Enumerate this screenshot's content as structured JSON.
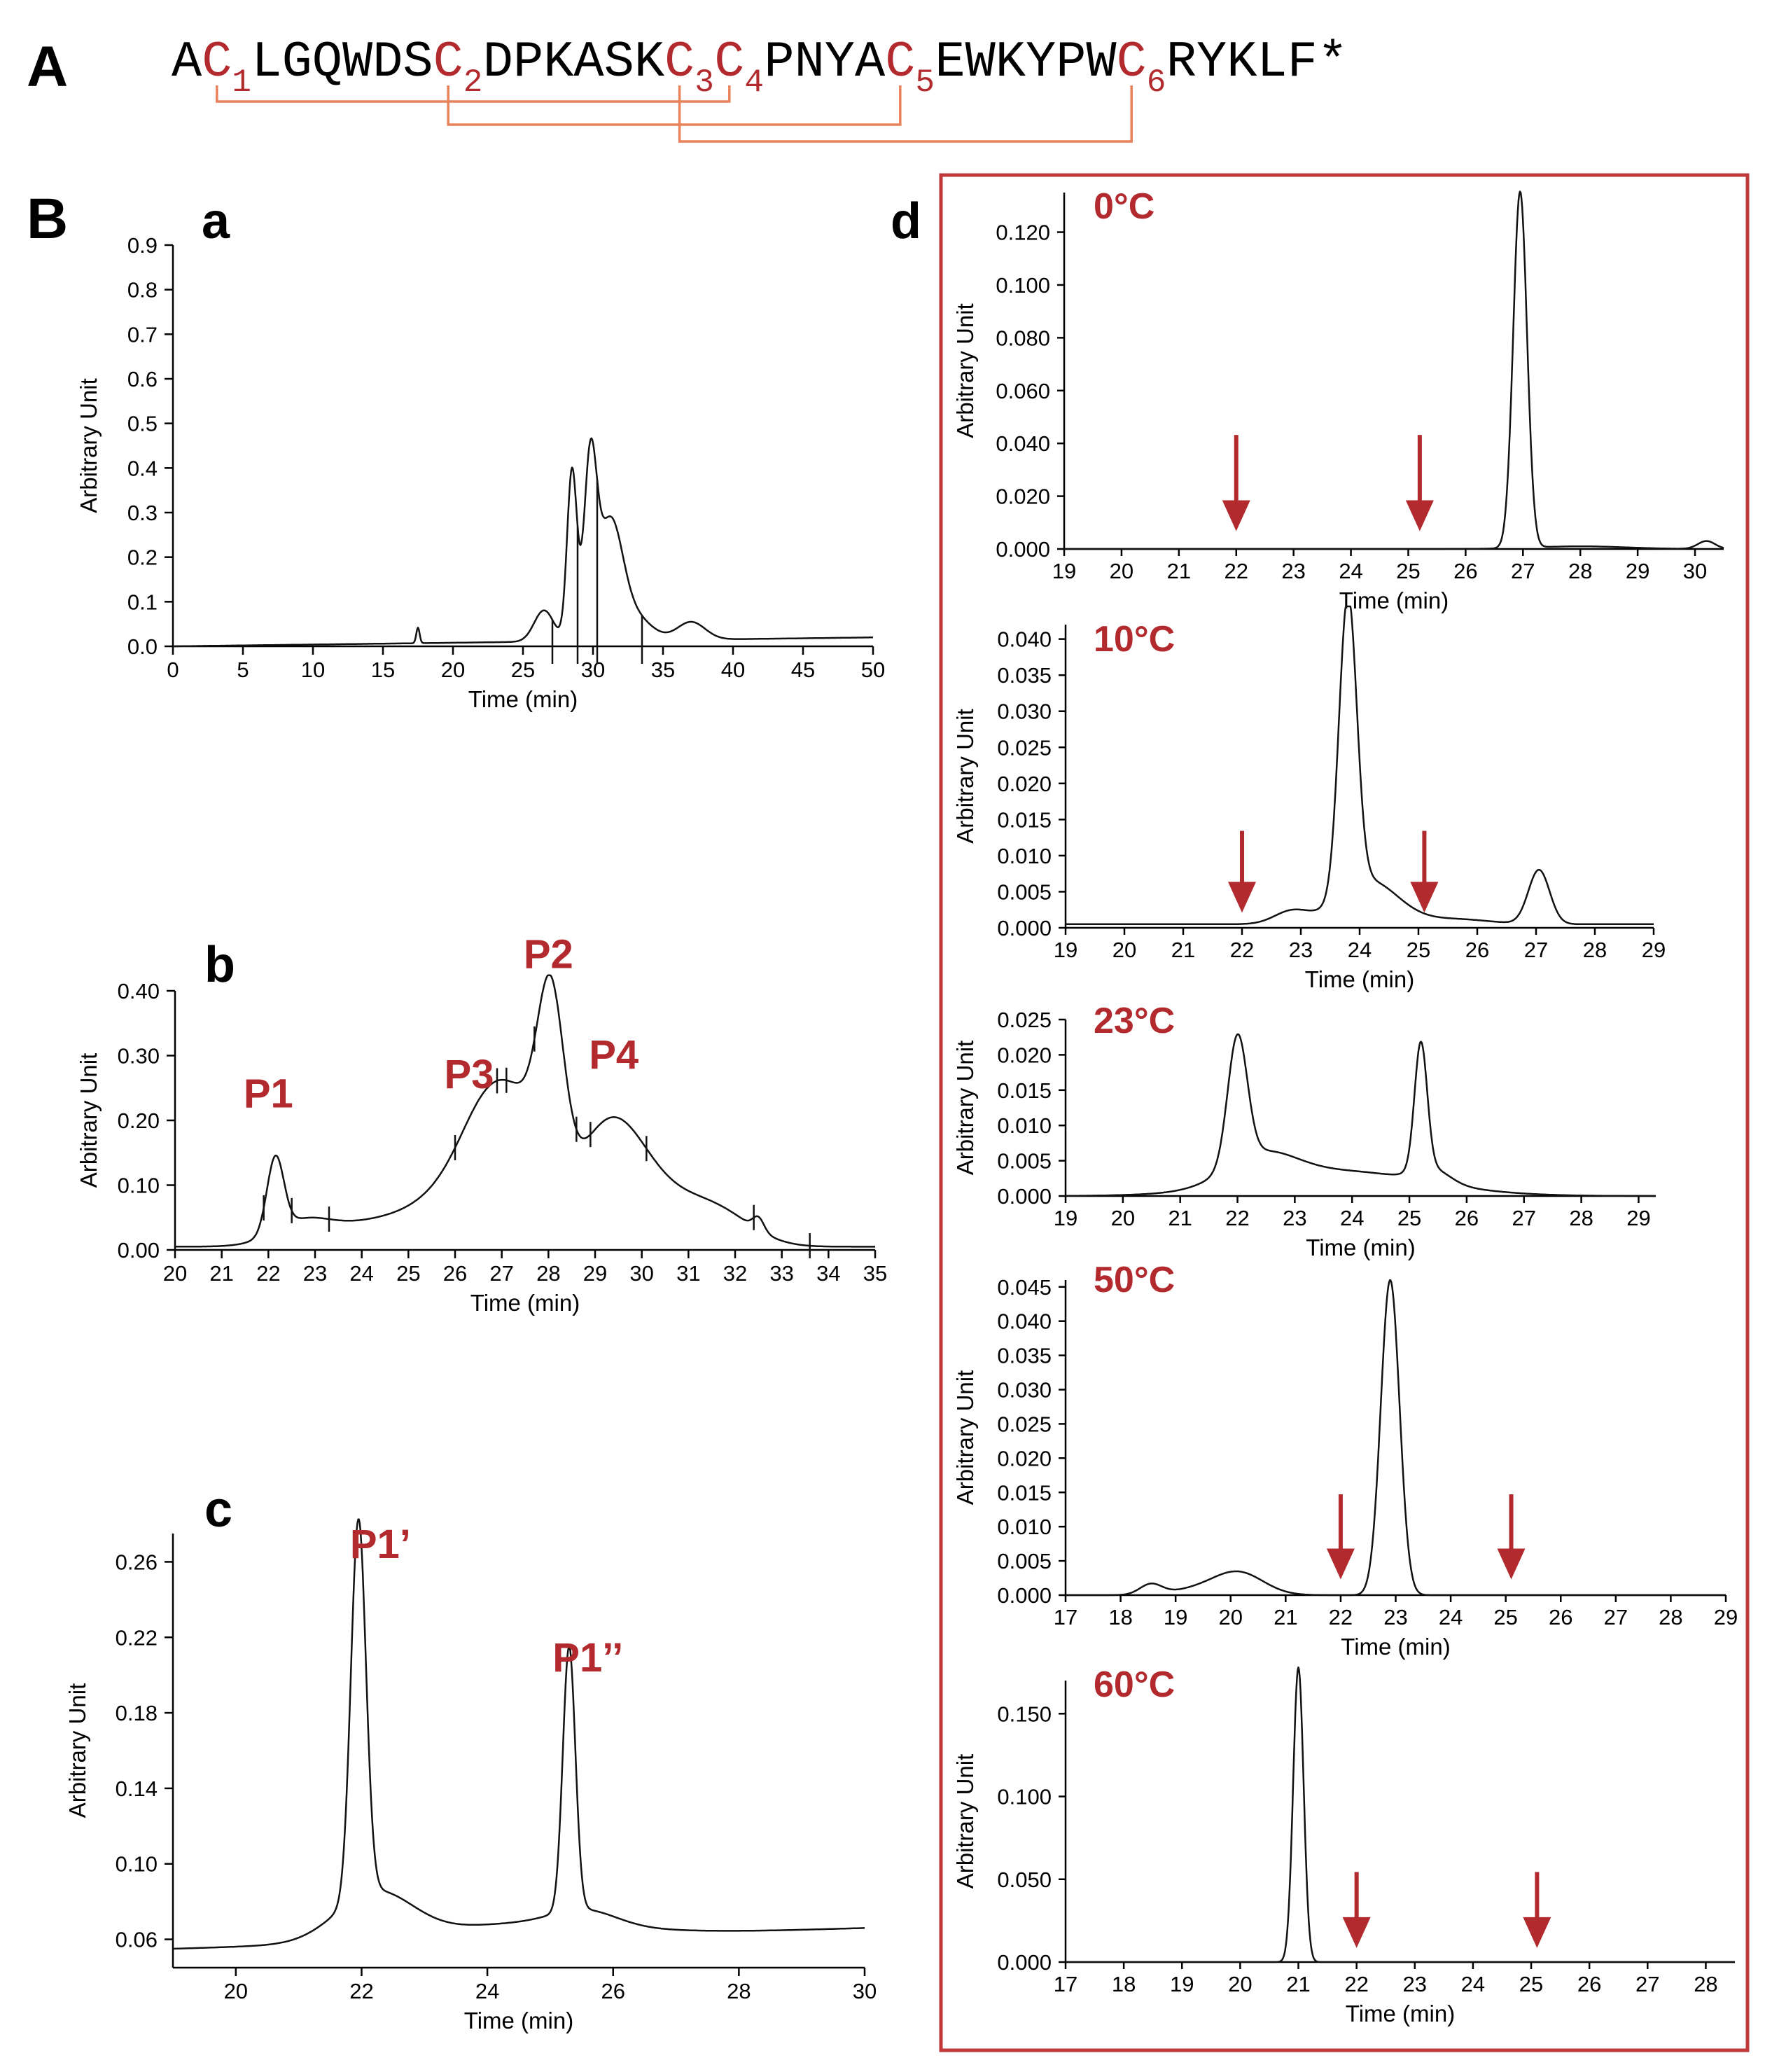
{
  "panel_a": {
    "letter": "A",
    "sequence": [
      {
        "t": "A",
        "c": "k"
      },
      {
        "t": "C",
        "c": "r",
        "sub": "1"
      },
      {
        "t": "LGQWDS",
        "c": "k"
      },
      {
        "t": "C",
        "c": "r",
        "sub": "2"
      },
      {
        "t": "DPKASK",
        "c": "k"
      },
      {
        "t": "C",
        "c": "r",
        "sub": "3"
      },
      {
        "t": "C",
        "c": "r",
        "sub": "4"
      },
      {
        "t": "PNYA",
        "c": "k"
      },
      {
        "t": "C",
        "c": "r",
        "sub": "5"
      },
      {
        "t": "EWKYPW",
        "c": "k"
      },
      {
        "t": "C",
        "c": "r",
        "sub": "6"
      },
      {
        "t": "RYKLF*",
        "c": "k"
      }
    ],
    "disulfide_bonds": [
      [
        "1",
        "4"
      ],
      [
        "2",
        "5"
      ],
      [
        "3",
        "6"
      ]
    ]
  },
  "panel_b": {
    "letter": "B"
  },
  "colors": {
    "accent": "#b22a2e",
    "bond": "#e8825a",
    "trace": "#111111",
    "frame": "#c0393b"
  },
  "chart_data": [
    {
      "id": "a",
      "type": "line",
      "label": "a",
      "xlabel": "Time (min)",
      "ylabel": "Arbitrary Unit",
      "xlim": [
        0,
        50
      ],
      "ylim": [
        0,
        0.9
      ],
      "xticks": [
        0,
        5,
        10,
        15,
        20,
        25,
        30,
        35,
        40,
        45,
        50
      ],
      "xtick_labels": [
        "0",
        "5",
        "10",
        "15",
        "20",
        "25",
        "30",
        "35",
        "40",
        "45",
        "50"
      ],
      "yticks": [
        0.0,
        0.1,
        0.2,
        0.3,
        0.4,
        0.5,
        0.6,
        0.7,
        0.8,
        0.9
      ],
      "ytick_labels": [
        "0.0",
        "0.1",
        "0.2",
        "0.3",
        "0.4",
        "0.5",
        "0.6",
        "0.7",
        "0.8",
        "0.9"
      ],
      "baseline": 0.0,
      "slope": 0.0004,
      "peaks": [
        [
          17.5,
          0.035,
          0.12
        ],
        [
          26.5,
          0.07,
          0.7
        ],
        [
          28.5,
          0.38,
          0.35
        ],
        [
          29.8,
          0.37,
          0.45
        ],
        [
          31.2,
          0.26,
          0.9
        ],
        [
          33.0,
          0.05,
          1.2
        ],
        [
          37.0,
          0.04,
          1.0
        ]
      ],
      "cut_marks": [
        27.1,
        28.9,
        30.3,
        33.5
      ],
      "labels": []
    },
    {
      "id": "b",
      "type": "line",
      "label": "b",
      "xlabel": "Time (min)",
      "ylabel": "Arbitrary Unit",
      "xlim": [
        20,
        35
      ],
      "ylim": [
        0,
        0.4
      ],
      "xticks": [
        20,
        21,
        22,
        23,
        24,
        25,
        26,
        27,
        28,
        29,
        30,
        31,
        32,
        33,
        34,
        35
      ],
      "xtick_labels": [
        "20",
        "21",
        "22",
        "23",
        "24",
        "25",
        "26",
        "27",
        "28",
        "29",
        "30",
        "31",
        "32",
        "33",
        "34",
        "35"
      ],
      "yticks": [
        0.0,
        0.1,
        0.2,
        0.3,
        0.4
      ],
      "ytick_labels": [
        "0.00",
        "0.10",
        "0.20",
        "0.30",
        "0.40"
      ],
      "baseline": 0.005,
      "slope": 0,
      "peaks": [
        [
          22.15,
          0.115,
          0.18
        ],
        [
          22.7,
          0.03,
          0.6
        ],
        [
          24.5,
          0.04,
          1.2
        ],
        [
          26.2,
          0.08,
          0.8
        ],
        [
          26.7,
          0.12,
          0.55
        ],
        [
          27.5,
          0.15,
          0.55
        ],
        [
          28.05,
          0.27,
          0.28
        ],
        [
          29.3,
          0.18,
          0.75
        ],
        [
          30.7,
          0.06,
          0.9
        ],
        [
          31.8,
          0.03,
          0.7
        ],
        [
          32.5,
          0.02,
          0.12
        ]
      ],
      "cut_marks": [
        21.9,
        22.5,
        23.3,
        26.0,
        26.9,
        27.1,
        27.7,
        28.6,
        28.9,
        30.1,
        32.4,
        33.6
      ],
      "labels": [
        {
          "text": "P1",
          "x": 22.0,
          "y": 0.22
        },
        {
          "text": "P3",
          "x": 26.3,
          "y": 0.25
        },
        {
          "text": "P2",
          "x": 28.0,
          "y": 0.435
        },
        {
          "text": "P4",
          "x": 29.4,
          "y": 0.28
        }
      ]
    },
    {
      "id": "c",
      "type": "line",
      "label": "c",
      "xlabel": "Time (min)",
      "ylabel": "Arbitrary Unit",
      "xlim": [
        19,
        30
      ],
      "ylim": [
        0.045,
        0.275
      ],
      "xticks": [
        20,
        22,
        24,
        26,
        28,
        30
      ],
      "xtick_labels": [
        "20",
        "22",
        "24",
        "26",
        "28",
        "30"
      ],
      "yticks": [
        0.06,
        0.1,
        0.14,
        0.18,
        0.22,
        0.26
      ],
      "ytick_labels": [
        "0.06",
        "0.10",
        "0.14",
        "0.18",
        "0.22",
        "0.26"
      ],
      "baseline": 0.055,
      "slope": 0.001,
      "peaks": [
        [
          21.95,
          0.2,
          0.12
        ],
        [
          22.2,
          0.025,
          0.6
        ],
        [
          25.3,
          0.14,
          0.1
        ],
        [
          25.55,
          0.008,
          0.5
        ],
        [
          24.5,
          0.008,
          1.5
        ]
      ],
      "cut_marks": [],
      "labels": [
        {
          "text": "P1’",
          "x": 22.3,
          "y": 0.262
        },
        {
          "text": "P1’’",
          "x": 25.6,
          "y": 0.202
        }
      ]
    },
    {
      "id": "d0",
      "type": "line",
      "label": "d",
      "temp": "0°C",
      "xlabel": "Time (min)",
      "ylabel": "Arbitrary Unit",
      "xlim": [
        19,
        30.5
      ],
      "ylim": [
        0,
        0.135
      ],
      "xticks": [
        19,
        20,
        21,
        22,
        23,
        24,
        25,
        26,
        27,
        28,
        29,
        30
      ],
      "xtick_labels": [
        "19",
        "20",
        "21",
        "22",
        "23",
        "24",
        "25",
        "26",
        "27",
        "28",
        "29",
        "30"
      ],
      "yticks": [
        0.0,
        0.02,
        0.04,
        0.06,
        0.08,
        0.1,
        0.12
      ],
      "ytick_labels": [
        "0.000",
        "0.020",
        "0.040",
        "0.060",
        "0.080",
        "0.100",
        "0.120"
      ],
      "baseline": 0.0,
      "slope": 0,
      "peaks": [
        [
          26.95,
          0.135,
          0.12
        ],
        [
          30.2,
          0.003,
          0.15
        ],
        [
          28.0,
          0.001,
          0.8
        ]
      ],
      "arrows": [
        22.0,
        25.2
      ],
      "cut_marks": [],
      "labels": []
    },
    {
      "id": "d10",
      "type": "line",
      "label": "",
      "temp": "10°C",
      "xlabel": "Time (min)",
      "ylabel": "Arbitrary Unit",
      "xlim": [
        19,
        29
      ],
      "ylim": [
        0,
        0.042
      ],
      "xticks": [
        19,
        20,
        21,
        22,
        23,
        24,
        25,
        26,
        27,
        28,
        29
      ],
      "xtick_labels": [
        "19",
        "20",
        "21",
        "22",
        "23",
        "24",
        "25",
        "26",
        "27",
        "28",
        "29"
      ],
      "yticks": [
        0.0,
        0.005,
        0.01,
        0.015,
        0.02,
        0.025,
        0.03,
        0.035,
        0.04
      ],
      "ytick_labels": [
        "0.000",
        "0.005",
        "0.010",
        "0.015",
        "0.020",
        "0.025",
        "0.030",
        "0.035",
        "0.040"
      ],
      "baseline": 0.0005,
      "slope": 0,
      "peaks": [
        [
          23.8,
          0.041,
          0.15
        ],
        [
          24.15,
          0.006,
          0.5
        ],
        [
          22.85,
          0.0018,
          0.3
        ],
        [
          27.05,
          0.0075,
          0.18
        ],
        [
          25.6,
          0.0007,
          0.6
        ]
      ],
      "arrows": [
        22.0,
        25.1
      ],
      "cut_marks": [],
      "labels": []
    },
    {
      "id": "d23",
      "type": "line",
      "label": "",
      "temp": "23°C",
      "xlabel": "Time (min)",
      "ylabel": "Arbitrary Unit",
      "xlim": [
        19,
        29.3
      ],
      "ylim": [
        0,
        0.025
      ],
      "xticks": [
        19,
        20,
        21,
        22,
        23,
        24,
        25,
        26,
        27,
        28,
        29
      ],
      "xtick_labels": [
        "19",
        "20",
        "21",
        "22",
        "23",
        "24",
        "25",
        "26",
        "27",
        "28",
        "29"
      ],
      "yticks": [
        0.0,
        0.005,
        0.01,
        0.015,
        0.02,
        0.025
      ],
      "ytick_labels": [
        "0.000",
        "0.005",
        "0.010",
        "0.015",
        "0.020",
        "0.025"
      ],
      "baseline": 0.0,
      "slope": 0,
      "peaks": [
        [
          22.0,
          0.018,
          0.17
        ],
        [
          22.4,
          0.004,
          0.6
        ],
        [
          23.8,
          0.0035,
          1.5
        ],
        [
          25.2,
          0.018,
          0.11
        ],
        [
          25.4,
          0.002,
          0.3
        ]
      ],
      "arrows": [],
      "cut_marks": [],
      "labels": []
    },
    {
      "id": "d50",
      "type": "line",
      "label": "",
      "temp": "50°C",
      "xlabel": "Time (min)",
      "ylabel": "Arbitrary Unit",
      "xlim": [
        17,
        29
      ],
      "ylim": [
        0,
        0.046
      ],
      "xticks": [
        17,
        18,
        19,
        20,
        21,
        22,
        23,
        24,
        25,
        26,
        27,
        28,
        29
      ],
      "xtick_labels": [
        "17",
        "18",
        "19",
        "20",
        "21",
        "22",
        "23",
        "24",
        "25",
        "26",
        "27",
        "28",
        "29"
      ],
      "yticks": [
        0.0,
        0.005,
        0.01,
        0.015,
        0.02,
        0.025,
        0.03,
        0.035,
        0.04,
        0.045
      ],
      "ytick_labels": [
        "0.000",
        "0.005",
        "0.010",
        "0.015",
        "0.020",
        "0.025",
        "0.030",
        "0.035",
        "0.040",
        "0.045"
      ],
      "baseline": 0.0,
      "slope": 0,
      "peaks": [
        [
          18.55,
          0.0015,
          0.2
        ],
        [
          20.15,
          0.0032,
          0.45
        ],
        [
          19.4,
          0.0008,
          0.5
        ],
        [
          22.9,
          0.046,
          0.17
        ]
      ],
      "arrows": [
        22.0,
        25.1
      ],
      "cut_marks": [],
      "labels": []
    },
    {
      "id": "d60",
      "type": "line",
      "label": "",
      "temp": "60°C",
      "xlabel": "Time (min)",
      "ylabel": "Arbitrary Unit",
      "xlim": [
        17,
        28.5
      ],
      "ylim": [
        0,
        0.17
      ],
      "xticks": [
        17,
        18,
        19,
        20,
        21,
        22,
        23,
        24,
        25,
        26,
        27,
        28
      ],
      "xtick_labels": [
        "17",
        "18",
        "19",
        "20",
        "21",
        "22",
        "23",
        "24",
        "25",
        "26",
        "27",
        "28"
      ],
      "yticks": [
        0.0,
        0.05,
        0.1,
        0.15
      ],
      "ytick_labels": [
        "0.000",
        "0.050",
        "0.100",
        "0.150"
      ],
      "baseline": 0.0,
      "slope": 0,
      "peaks": [
        [
          21.0,
          0.178,
          0.09
        ]
      ],
      "arrows": [
        22.0,
        25.1
      ],
      "cut_marks": [],
      "labels": []
    }
  ]
}
